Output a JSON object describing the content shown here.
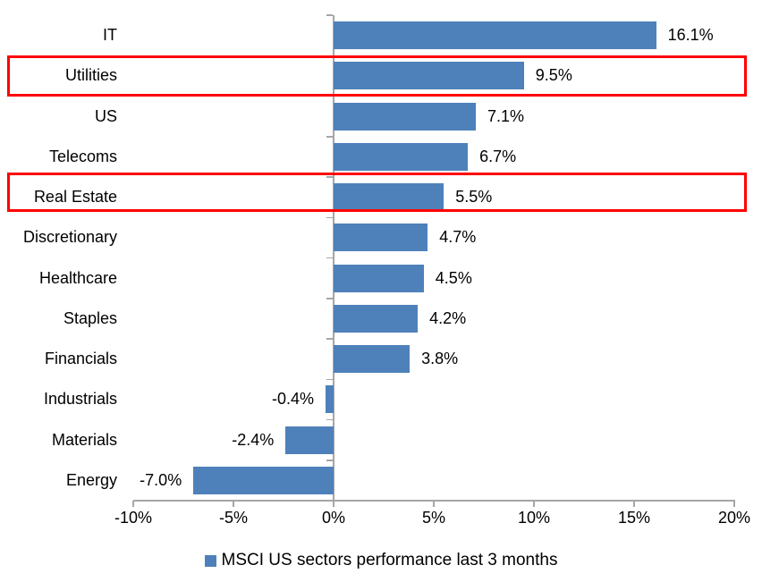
{
  "chart_data": {
    "type": "bar",
    "orientation": "horizontal",
    "title": "",
    "categories": [
      "IT",
      "Utilities",
      "US",
      "Telecoms",
      "Real Estate",
      "Discretionary",
      "Healthcare",
      "Staples",
      "Financials",
      "Industrials",
      "Materials",
      "Energy"
    ],
    "values": [
      16.1,
      9.5,
      7.1,
      6.7,
      5.5,
      4.7,
      4.5,
      4.2,
      3.8,
      -0.4,
      -2.4,
      -7.0
    ],
    "value_labels": [
      "16.1%",
      "9.5%",
      "7.1%",
      "6.7%",
      "5.5%",
      "4.7%",
      "4.5%",
      "4.2%",
      "3.8%",
      "-0.4%",
      "-2.4%",
      "-7.0%"
    ],
    "highlighted_categories": [
      "Utilities",
      "Real Estate"
    ],
    "x_axis": {
      "range": [
        -10,
        20
      ],
      "tick_values": [
        -10,
        -5,
        0,
        5,
        10,
        15,
        20
      ],
      "tick_labels": [
        "-10%",
        "-5%",
        "0%",
        "5%",
        "10%",
        "15%",
        "20%"
      ]
    },
    "legend": {
      "label": "MSCI US sectors performance last 3 months",
      "position": "bottom"
    },
    "colors": {
      "bar": "#4E81BA",
      "highlight_box": "#FF0000",
      "axis": "#A6A6A6",
      "text": "#000000",
      "background": "#FFFFFF"
    },
    "grid": false
  }
}
